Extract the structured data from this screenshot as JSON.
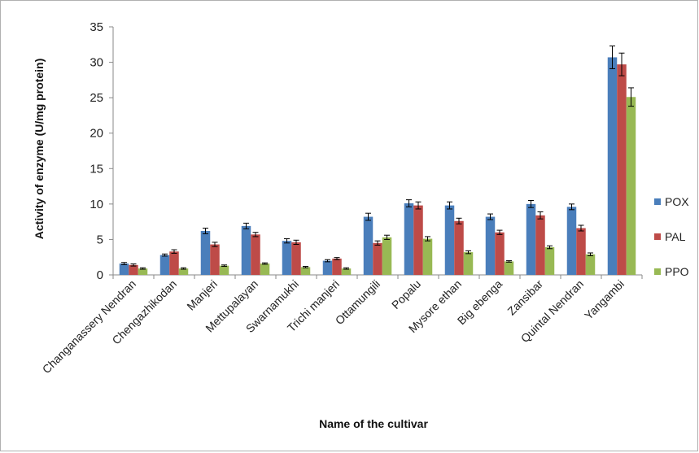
{
  "chart_data": {
    "type": "bar",
    "title": "",
    "xlabel": "Name of the cultivar",
    "ylabel": "Activity of enzyme  (U/mg protein)",
    "ylim": [
      0,
      35
    ],
    "yticks": [
      0,
      5,
      10,
      15,
      20,
      25,
      30,
      35
    ],
    "grid": false,
    "legend_position": "right",
    "categories": [
      "Changanassery Nendran",
      "Chengazhikodan",
      "Manjeri",
      "Mettupalayan",
      "Swarnamukhi",
      "Trichi manjeri",
      "Ottamungili",
      "Popalu",
      "Mysore ethan",
      "Big ebenga",
      "Zansibar",
      "Quintal Nendran",
      "Yangambi"
    ],
    "series": [
      {
        "name": "POX",
        "color": "#4a7ebb",
        "values": [
          1.6,
          2.8,
          6.2,
          6.9,
          4.8,
          2.0,
          8.2,
          10.1,
          9.8,
          8.2,
          10.0,
          9.6,
          30.7
        ],
        "errors": [
          0.15,
          0.15,
          0.4,
          0.4,
          0.3,
          0.15,
          0.5,
          0.5,
          0.5,
          0.4,
          0.5,
          0.4,
          1.6
        ]
      },
      {
        "name": "PAL",
        "color": "#be4b48",
        "values": [
          1.4,
          3.3,
          4.3,
          5.7,
          4.6,
          2.3,
          4.5,
          9.8,
          7.6,
          6.0,
          8.4,
          6.6,
          29.7
        ],
        "errors": [
          0.15,
          0.25,
          0.3,
          0.3,
          0.3,
          0.15,
          0.3,
          0.5,
          0.4,
          0.3,
          0.5,
          0.4,
          1.6
        ]
      },
      {
        "name": "PPO",
        "color": "#98b954",
        "values": [
          0.9,
          0.9,
          1.3,
          1.6,
          1.1,
          0.9,
          5.3,
          5.1,
          3.2,
          1.9,
          3.9,
          2.9,
          25.1
        ],
        "errors": [
          0.1,
          0.1,
          0.1,
          0.1,
          0.1,
          0.1,
          0.3,
          0.3,
          0.2,
          0.1,
          0.2,
          0.2,
          1.3
        ]
      }
    ]
  }
}
